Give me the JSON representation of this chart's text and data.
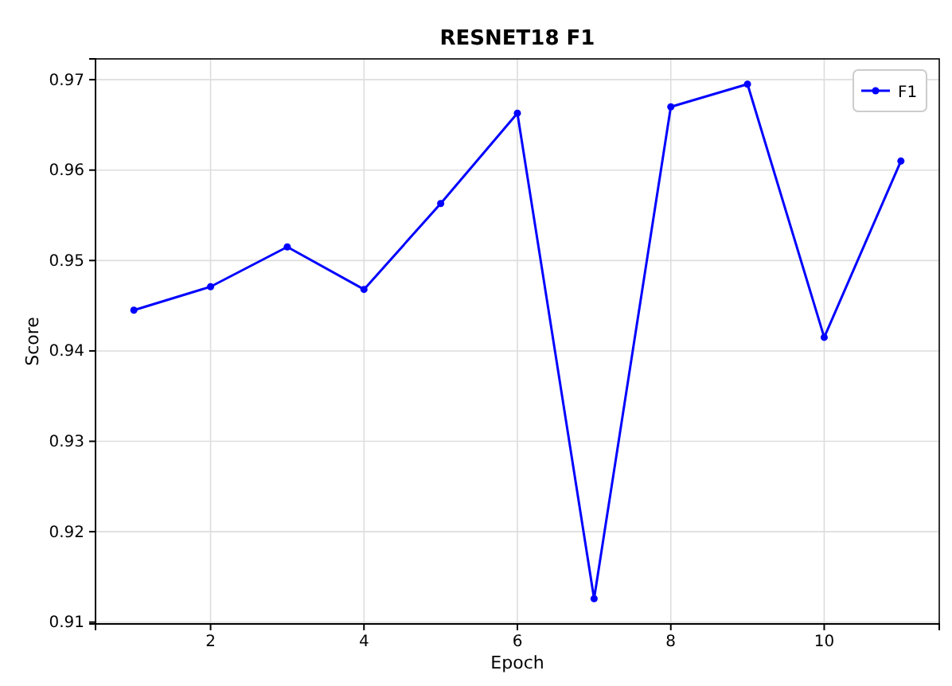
{
  "chart_data": {
    "type": "line",
    "title": "RESNET18 F1",
    "xlabel": "Epoch",
    "ylabel": "Score",
    "x": [
      1,
      2,
      3,
      4,
      5,
      6,
      7,
      8,
      9,
      10,
      11
    ],
    "series": [
      {
        "name": "F1",
        "color": "#0000ff",
        "values": [
          0.9445,
          0.9471,
          0.9515,
          0.9468,
          0.9563,
          0.9663,
          0.9126,
          0.967,
          0.9695,
          0.9415,
          0.961
        ]
      }
    ],
    "xlim": [
      0.5,
      11.5
    ],
    "ylim": [
      0.9098,
      0.9723
    ],
    "xticks": [
      2,
      4,
      6,
      8,
      10
    ],
    "yticks": [
      {
        "value": 0.91,
        "label": "0.91"
      },
      {
        "value": 0.92,
        "label": "0.92"
      },
      {
        "value": 0.93,
        "label": "0.93"
      },
      {
        "value": 0.94,
        "label": "0.94"
      },
      {
        "value": 0.95,
        "label": "0.95"
      },
      {
        "value": 0.96,
        "label": "0.96"
      },
      {
        "value": 0.97,
        "label": "0.97"
      }
    ],
    "grid": true,
    "legend": "top right",
    "marker": "circle",
    "line_style": "solid"
  }
}
